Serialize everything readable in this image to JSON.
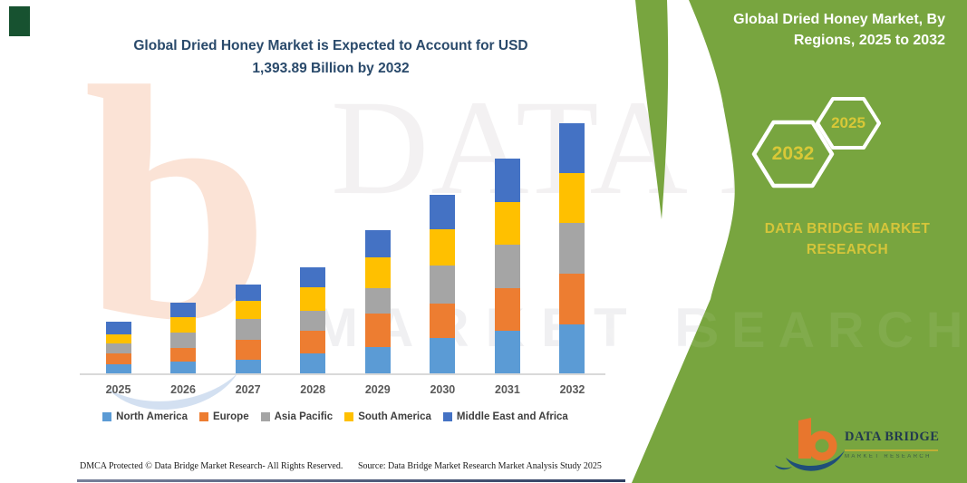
{
  "title": {
    "line1": "Global Dried Honey Market is Expected to Account for USD",
    "line2": "1,393.89 Billion by 2032"
  },
  "sidebar": {
    "heading_line1": "Global Dried Honey Market, By",
    "heading_line2": "Regions, 2025 to 2032",
    "hexagon_back_label": "2032",
    "hexagon_front_label": "2025",
    "brand_line1": "DATA BRIDGE MARKET",
    "brand_line2": "RESEARCH"
  },
  "logo": {
    "name": "DATA BRIDGE",
    "tagline": "MARKET RESEARCH"
  },
  "footer": {
    "left": "DMCA Protected © Data Bridge Market Research-  All Rights Reserved.",
    "right": "Source: Data Bridge Market Research  Market Analysis Study 2025"
  },
  "watermark": {
    "text1": "DATA B",
    "text2": "MARKET RESEARCH",
    "text3": "RESEARCH"
  },
  "colors": {
    "green_panel": "#78A53F",
    "hexagon_label_yellow": "#D8C837",
    "brand_yellow": "#D5C53A",
    "title_navy": "#2A4A6B",
    "axis_label_gray": "#595959",
    "logo_orange": "#E8762D",
    "logo_navy": "#1F4E79"
  },
  "chart_data": {
    "type": "bar",
    "stacked": true,
    "title": "Global Dried Honey Market is Expected to Account for USD 1,393.89 Billion by 2032",
    "unit": "USD Billion",
    "categories": [
      "2025",
      "2026",
      "2027",
      "2028",
      "2029",
      "2030",
      "2031",
      "2032"
    ],
    "series": [
      {
        "name": "North America",
        "color": "#5B9BD5",
        "values": [
          55,
          72,
          81,
          117,
          151,
          202,
          243,
          279
        ]
      },
      {
        "name": "Europe",
        "color": "#ED7D31",
        "values": [
          62,
          76,
          109,
          126,
          185,
          193,
          235,
          280
        ]
      },
      {
        "name": "Asia Pacific",
        "color": "#A5A5A5",
        "values": [
          55,
          84,
          117,
          109,
          143,
          210,
          243,
          280
        ]
      },
      {
        "name": "South America",
        "color": "#FFC000",
        "values": [
          50,
          87,
          101,
          131,
          168,
          202,
          235,
          279
        ]
      },
      {
        "name": "Middle East and Africa",
        "color": "#4472C4",
        "values": [
          72,
          81,
          92,
          112,
          151,
          190,
          243,
          276
        ]
      }
    ],
    "estimated_totals": [
      294,
      400,
      500,
      595,
      798,
      997,
      1199,
      1394
    ],
    "value_axis_visible": false,
    "gridlines": false,
    "legend_position": "bottom"
  }
}
